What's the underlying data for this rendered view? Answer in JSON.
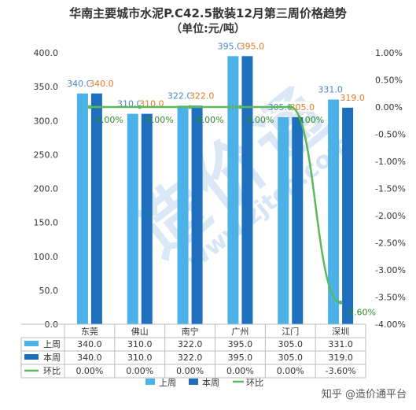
{
  "title": "华南主要城市水泥P.C42.5散装12月第三周价格趋势",
  "subtitle": "（单位:元/吨）",
  "watermark": {
    "main": "造价通",
    "url": "www.zjtcn.com"
  },
  "credit": "知乎 @造价通平台",
  "colors": {
    "last_week": "#4bb1e6",
    "this_week": "#1f6fbf",
    "ratio": "#5cb85c",
    "label_last": "#4a86c5",
    "label_this": "#e07b24"
  },
  "chart_data": {
    "type": "bar",
    "categories": [
      "东莞",
      "佛山",
      "南宁",
      "广州",
      "江门",
      "深圳"
    ],
    "series": [
      {
        "name": "上周",
        "type": "bar",
        "values": [
          340.0,
          310.0,
          322.0,
          395.0,
          305.0,
          331.0
        ],
        "labels": [
          "340.0",
          "310.0",
          "322.0",
          "395.0",
          "305.0",
          "331.0"
        ]
      },
      {
        "name": "本周",
        "type": "bar",
        "values": [
          340.0,
          310.0,
          322.0,
          395.0,
          305.0,
          319.0
        ],
        "labels": [
          "340.0",
          "310.0",
          "322.0",
          "395.0",
          "305.0",
          "319.0"
        ]
      },
      {
        "name": "环比",
        "type": "line",
        "axis": "right",
        "values": [
          0.0,
          0.0,
          0.0,
          0.0,
          0.0,
          -3.6
        ],
        "labels": [
          "0.00%",
          "0.00%",
          "0.00%",
          "0.00%",
          "0.00%",
          "-3.60%"
        ]
      }
    ],
    "y_left": {
      "min": 0,
      "max": 400,
      "ticks": [
        "0.0",
        "50.0",
        "100.0",
        "150.0",
        "200.0",
        "250.0",
        "300.0",
        "350.0",
        "400.0"
      ]
    },
    "y_right": {
      "min": -4,
      "max": 1,
      "ticks": [
        "1.00%",
        "0.50%",
        "0.00%",
        "-0.50%",
        "-1.00%",
        "-1.50%",
        "-2.00%",
        "-2.50%",
        "-3.00%",
        "-3.50%",
        "-4.00%"
      ]
    },
    "legend": [
      "上周",
      "本周",
      "环比"
    ],
    "legend_position": "bottom",
    "data_table": true,
    "grid": false
  }
}
